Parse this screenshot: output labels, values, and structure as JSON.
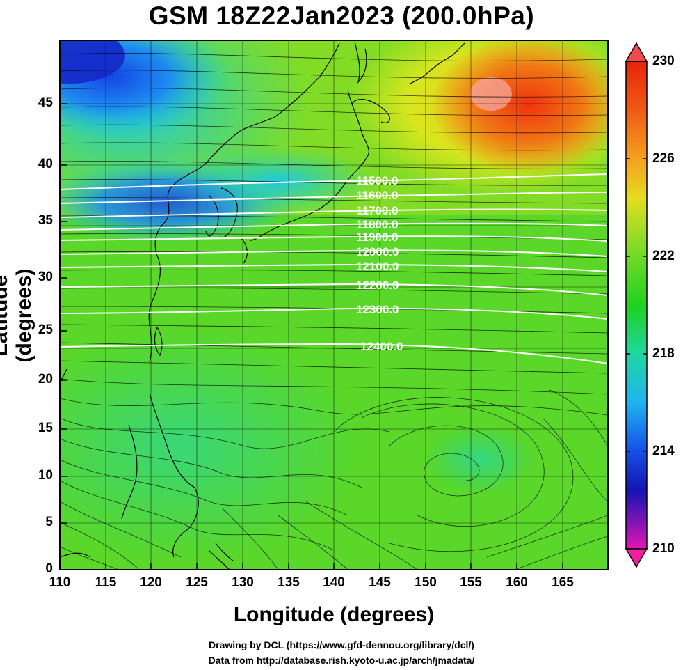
{
  "title": "GSM 18Z22Jan2023 (200.0hPa)",
  "x_axis": {
    "label": "Longitude (degrees)",
    "ticks": [
      "110",
      "115",
      "120",
      "125",
      "130",
      "135",
      "140",
      "145",
      "150",
      "155",
      "160",
      "165"
    ]
  },
  "y_axis": {
    "label": "Latitude  (degrees)",
    "ticks": [
      "0",
      "5",
      "10",
      "15",
      "20",
      "25",
      "30",
      "35",
      "40",
      "45"
    ]
  },
  "colorbar": {
    "ticks": [
      "230",
      "226",
      "222",
      "218",
      "214",
      "210"
    ]
  },
  "contour_labels": [
    "11500.0",
    "11600.0",
    "11700.0",
    "11800.0",
    "11900.0",
    "12000.0",
    "12100.0",
    "12200.0",
    "12300.0",
    "12400.0"
  ],
  "credits": {
    "line1": "Drawing by DCL (https://www.gfd-dennou.org/library/dcl/)",
    "line2": "Data from http://database.rish.kyoto-u.ac.jp/arch/jmadata/"
  }
}
